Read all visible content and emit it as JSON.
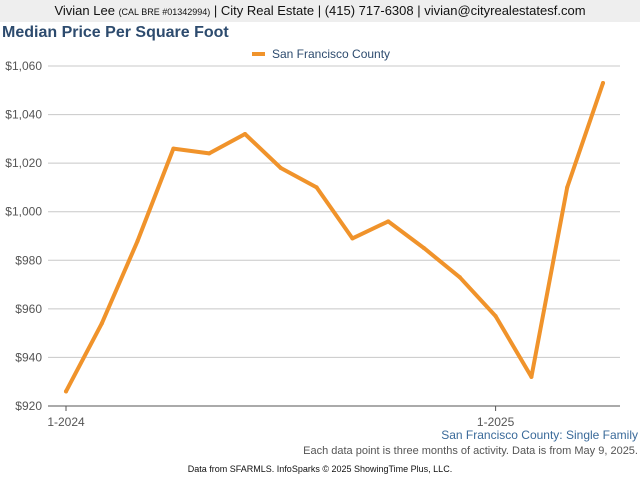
{
  "header": {
    "agent_name": "Vivian Lee",
    "license": "(CAL BRE #01342994)",
    "rest": "| City Real Estate | (415) 717-6308 | vivian@cityrealestatesf.com"
  },
  "footer": {
    "series_label": "San Francisco County: Single Family",
    "note": "Each data point is three months of activity. Data is from May 9, 2025.",
    "source": "Data from SFARMLS. InfoSparks © 2025 ShowingTime Plus, LLC."
  },
  "colors": {
    "line": "#f0932b",
    "title": "#2d4b6e",
    "grid": "#c8c8c8",
    "axis": "#555555"
  },
  "chart_data": {
    "type": "line",
    "title": "Median Price Per Square Foot",
    "xlabel": "",
    "ylabel": "",
    "x_tick_labels": [
      {
        "index": 0,
        "label": "1-2024"
      },
      {
        "index": 12,
        "label": "1-2025"
      }
    ],
    "y_ticks": [
      920,
      940,
      960,
      980,
      1000,
      1020,
      1040,
      1060
    ],
    "y_tick_labels": [
      "$920",
      "$940",
      "$960",
      "$980",
      "$1,000",
      "$1,020",
      "$1,040",
      "$1,060"
    ],
    "ylim": [
      920,
      1060
    ],
    "grid": true,
    "legend_position": "top-center",
    "series": [
      {
        "name": "San Francisco County",
        "values": [
          926,
          954,
          988,
          1026,
          1024,
          1032,
          1018,
          1010,
          989,
          996,
          985,
          973,
          957,
          932,
          1010,
          1053
        ]
      }
    ]
  }
}
